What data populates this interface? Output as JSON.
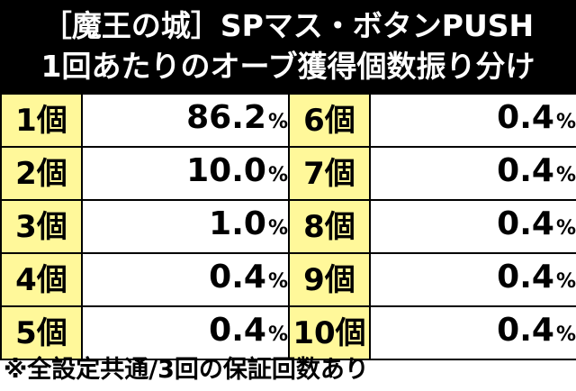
{
  "header": {
    "line1": "［魔王の城］SPマス・ボタンPUSH",
    "line2": "1回あたりのオーブ獲得個数振り分け"
  },
  "rows": [
    {
      "left_label": "1個",
      "left_value": "86.2",
      "right_label": "6個",
      "right_value": "0.4"
    },
    {
      "left_label": "2個",
      "left_value": "10.0",
      "right_label": "7個",
      "right_value": "0.4"
    },
    {
      "left_label": "3個",
      "left_value": "1.0",
      "right_label": "8個",
      "right_value": "0.4"
    },
    {
      "left_label": "4個",
      "left_value": "0.4",
      "right_label": "9個",
      "right_value": "0.4"
    },
    {
      "left_label": "5個",
      "left_value": "0.4",
      "right_label": "10個",
      "right_value": "0.4"
    }
  ],
  "unit": "%",
  "footer": "※全設定共通/3回の保証回数あり",
  "colors": {
    "header_bg": "#000000",
    "label_bg": "#fff89a",
    "border": "#000000"
  }
}
